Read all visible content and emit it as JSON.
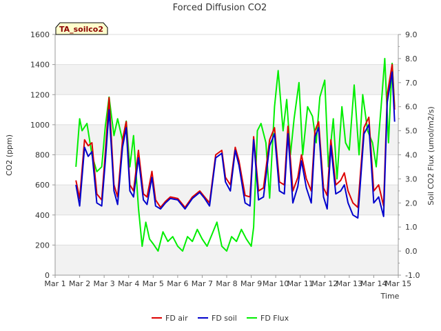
{
  "chart_data": {
    "type": "line",
    "title": "Forced Diffusion CO2",
    "badge": "TA_soilco2",
    "xlabel": "Time",
    "ylabel": "CO2 (ppm)",
    "y2label": "Soil CO2 Flux (umol/m2/s)",
    "xlim": [
      0,
      14
    ],
    "ylim": [
      0,
      1600
    ],
    "y2lim": [
      -1.0,
      9.0
    ],
    "x_ticks": [
      0,
      1,
      2,
      3,
      4,
      5,
      6,
      7,
      8,
      9,
      10,
      11,
      12,
      13,
      14
    ],
    "x_tick_labels": [
      "Mar 1",
      "Mar 2",
      "Mar 3",
      "Mar 4",
      "Mar 5",
      "Mar 6",
      "Mar 7",
      "Mar 8",
      "Mar 9",
      "Mar 10",
      "Mar 11",
      "Mar 12",
      "Mar 13",
      "Mar 14",
      "Mar 15"
    ],
    "y_ticks": [
      0,
      200,
      400,
      600,
      800,
      1000,
      1200,
      1400,
      1600
    ],
    "y2_ticks": [
      -1.0,
      0.0,
      1.0,
      2.0,
      3.0,
      4.0,
      5.0,
      6.0,
      7.0,
      8.0,
      9.0
    ],
    "y2_tick_labels": [
      "-1.0",
      "0.0",
      "1.0",
      "2.0",
      "3.0",
      "4.0",
      "5.0",
      "6.0",
      "7.0",
      "8.0",
      "9.0"
    ],
    "grid": "horizontal bands",
    "legend_position": "bottom",
    "series": [
      {
        "name": "FD air",
        "color": "#dd0000",
        "axis": "left",
        "x": [
          0.85,
          1.0,
          1.2,
          1.35,
          1.5,
          1.7,
          1.9,
          2.05,
          2.2,
          2.4,
          2.55,
          2.75,
          2.9,
          3.05,
          3.2,
          3.4,
          3.6,
          3.75,
          3.95,
          4.1,
          4.3,
          4.5,
          4.7,
          5.0,
          5.3,
          5.6,
          5.9,
          6.1,
          6.3,
          6.55,
          6.8,
          6.95,
          7.15,
          7.35,
          7.5,
          7.75,
          7.95,
          8.1,
          8.3,
          8.5,
          8.75,
          8.95,
          9.15,
          9.35,
          9.5,
          9.7,
          9.9,
          10.05,
          10.25,
          10.45,
          10.6,
          10.75,
          10.95,
          11.1,
          11.25,
          11.45,
          11.65,
          11.8,
          11.95,
          12.15,
          12.35,
          12.6,
          12.8,
          13.0,
          13.2,
          13.4,
          13.55,
          13.75,
          13.85
        ],
        "values": [
          630,
          510,
          900,
          860,
          880,
          540,
          500,
          820,
          1180,
          600,
          520,
          900,
          1020,
          600,
          560,
          830,
          540,
          520,
          690,
          500,
          450,
          490,
          520,
          510,
          450,
          520,
          560,
          520,
          480,
          800,
          830,
          650,
          600,
          850,
          760,
          530,
          520,
          920,
          560,
          580,
          900,
          980,
          620,
          600,
          990,
          560,
          650,
          800,
          640,
          560,
          960,
          1020,
          580,
          530,
          900,
          600,
          630,
          680,
          560,
          480,
          450,
          980,
          1050,
          560,
          600,
          460,
          1200,
          1400,
          1100
        ]
      },
      {
        "name": "FD soil",
        "color": "#0000cc",
        "axis": "left",
        "x": [
          0.85,
          1.0,
          1.2,
          1.35,
          1.5,
          1.7,
          1.9,
          2.05,
          2.2,
          2.4,
          2.55,
          2.75,
          2.9,
          3.05,
          3.2,
          3.4,
          3.6,
          3.75,
          3.95,
          4.1,
          4.3,
          4.5,
          4.7,
          5.0,
          5.3,
          5.6,
          5.9,
          6.1,
          6.3,
          6.55,
          6.8,
          6.95,
          7.15,
          7.35,
          7.5,
          7.75,
          7.95,
          8.1,
          8.3,
          8.5,
          8.75,
          8.95,
          9.15,
          9.35,
          9.5,
          9.7,
          9.9,
          10.05,
          10.25,
          10.45,
          10.6,
          10.75,
          10.95,
          11.1,
          11.25,
          11.45,
          11.65,
          11.8,
          11.95,
          12.15,
          12.35,
          12.6,
          12.8,
          13.0,
          13.2,
          13.4,
          13.55,
          13.75,
          13.85
        ],
        "values": [
          600,
          460,
          850,
          790,
          820,
          480,
          460,
          760,
          1100,
          560,
          470,
          850,
          980,
          560,
          520,
          780,
          500,
          470,
          650,
          460,
          440,
          480,
          510,
          500,
          440,
          510,
          550,
          510,
          460,
          780,
          810,
          620,
          560,
          830,
          730,
          480,
          460,
          900,
          500,
          520,
          860,
          940,
          560,
          540,
          940,
          480,
          590,
          760,
          580,
          480,
          920,
          980,
          520,
          440,
          860,
          540,
          560,
          600,
          480,
          400,
          380,
          940,
          1000,
          480,
          520,
          390,
          1150,
          1350,
          1020
        ]
      },
      {
        "name": "FD Flux",
        "color": "#00ee00",
        "axis": "right",
        "x": [
          0.85,
          1.0,
          1.1,
          1.3,
          1.5,
          1.7,
          1.9,
          2.05,
          2.2,
          2.4,
          2.55,
          2.75,
          2.9,
          3.05,
          3.2,
          3.4,
          3.55,
          3.7,
          3.85,
          4.0,
          4.2,
          4.4,
          4.6,
          4.8,
          5.0,
          5.2,
          5.4,
          5.6,
          5.8,
          6.0,
          6.2,
          6.4,
          6.6,
          6.8,
          7.0,
          7.2,
          7.4,
          7.6,
          7.8,
          8.0,
          8.1,
          8.25,
          8.4,
          8.6,
          8.75,
          8.95,
          9.1,
          9.3,
          9.45,
          9.6,
          9.75,
          9.95,
          10.1,
          10.3,
          10.5,
          10.65,
          10.8,
          11.0,
          11.15,
          11.35,
          11.5,
          11.7,
          11.85,
          12.0,
          12.2,
          12.4,
          12.55,
          12.75,
          12.95,
          13.1,
          13.3,
          13.45,
          13.6,
          13.75,
          13.85
        ],
        "values": [
          3.5,
          5.5,
          5.0,
          5.3,
          4.0,
          3.3,
          3.5,
          5.2,
          6.4,
          4.8,
          5.5,
          4.6,
          5.4,
          3.5,
          4.8,
          1.8,
          0.2,
          1.2,
          0.5,
          0.3,
          0.0,
          0.8,
          0.4,
          0.6,
          0.2,
          0.0,
          0.6,
          0.4,
          0.9,
          0.5,
          0.2,
          0.7,
          1.2,
          0.2,
          0.0,
          0.6,
          0.4,
          0.9,
          0.5,
          0.2,
          1.0,
          5.0,
          5.3,
          4.5,
          2.2,
          6.0,
          7.5,
          5.0,
          6.3,
          4.0,
          5.5,
          7.0,
          4.0,
          6.0,
          5.6,
          4.5,
          6.4,
          7.1,
          3.5,
          5.5,
          3.0,
          6.0,
          4.5,
          4.2,
          6.9,
          4.0,
          6.5,
          5.0,
          4.5,
          3.5,
          6.0,
          8.0,
          4.5,
          7.8,
          6.0
        ]
      }
    ]
  }
}
